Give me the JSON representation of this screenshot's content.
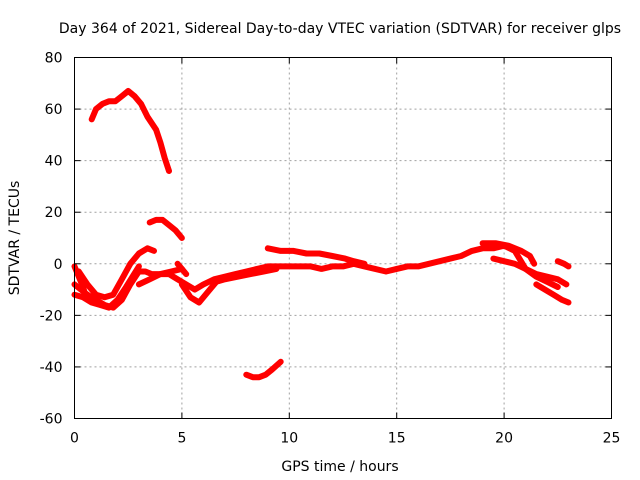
{
  "chart_data": {
    "type": "scatter",
    "title": "Day 364 of 2021, Sidereal Day-to-day VTEC variation (SDTVAR) for receiver glps",
    "xlabel": "GPS time / hours",
    "ylabel": "SDTVAR / TECUs",
    "xlim": [
      0,
      25
    ],
    "ylim": [
      -60,
      80
    ],
    "xticks": [
      0,
      5,
      10,
      15,
      20,
      25
    ],
    "yticks": [
      -60,
      -40,
      -20,
      0,
      20,
      40,
      60,
      80
    ],
    "grid": true,
    "color": "#ff0000",
    "series": [
      {
        "name": "track-1",
        "points": [
          [
            0.8,
            56
          ],
          [
            1.0,
            60
          ],
          [
            1.3,
            62
          ],
          [
            1.6,
            63
          ],
          [
            1.9,
            63
          ],
          [
            2.2,
            65
          ],
          [
            2.5,
            67
          ],
          [
            2.8,
            65
          ],
          [
            3.1,
            62
          ],
          [
            3.4,
            57
          ],
          [
            3.8,
            52
          ],
          [
            4.0,
            47
          ],
          [
            4.2,
            41
          ],
          [
            4.4,
            36
          ]
        ]
      },
      {
        "name": "track-2",
        "points": [
          [
            3.5,
            16
          ],
          [
            3.8,
            17
          ],
          [
            4.1,
            17
          ],
          [
            4.4,
            15
          ],
          [
            4.7,
            13
          ],
          [
            5.0,
            10
          ]
        ]
      },
      {
        "name": "track-3",
        "points": [
          [
            8.0,
            -43
          ],
          [
            8.3,
            -44
          ],
          [
            8.6,
            -44
          ],
          [
            8.9,
            -43
          ],
          [
            9.2,
            -41
          ],
          [
            9.6,
            -38
          ]
        ]
      },
      {
        "name": "track-4",
        "points": [
          [
            0.0,
            -8
          ],
          [
            0.3,
            -10
          ],
          [
            0.6,
            -12
          ],
          [
            1.0,
            -14
          ],
          [
            1.4,
            -16
          ],
          [
            1.8,
            -17
          ],
          [
            2.2,
            -14
          ],
          [
            2.6,
            -8
          ],
          [
            3.0,
            -3
          ],
          [
            3.3,
            -3
          ],
          [
            3.6,
            -4
          ],
          [
            4.0,
            -4
          ],
          [
            4.4,
            -4
          ],
          [
            4.8,
            -6
          ],
          [
            5.2,
            -8
          ],
          [
            5.6,
            -10
          ],
          [
            6.0,
            -8
          ],
          [
            6.5,
            -6
          ],
          [
            7.0,
            -5
          ],
          [
            7.5,
            -4
          ],
          [
            8.0,
            -3
          ],
          [
            8.5,
            -2
          ],
          [
            9.0,
            -1
          ],
          [
            9.5,
            -1
          ],
          [
            10.0,
            -1
          ],
          [
            10.5,
            -1
          ],
          [
            11.0,
            -1
          ],
          [
            11.5,
            -2
          ],
          [
            12.0,
            -1
          ],
          [
            12.5,
            -1
          ],
          [
            13.0,
            0
          ],
          [
            13.5,
            -1
          ],
          [
            14.0,
            -2
          ],
          [
            14.5,
            -3
          ],
          [
            15.0,
            -2
          ],
          [
            15.5,
            -1
          ],
          [
            16.0,
            -1
          ],
          [
            16.5,
            0
          ],
          [
            17.0,
            1
          ],
          [
            17.5,
            2
          ],
          [
            18.0,
            3
          ],
          [
            18.5,
            5
          ],
          [
            19.0,
            6
          ],
          [
            19.5,
            6
          ],
          [
            20.0,
            7
          ],
          [
            20.5,
            5
          ],
          [
            21.0,
            -2
          ],
          [
            21.5,
            -5
          ],
          [
            22.0,
            -7
          ],
          [
            22.5,
            -9
          ]
        ]
      },
      {
        "name": "track-5",
        "points": [
          [
            0.2,
            -3
          ],
          [
            0.6,
            -8
          ],
          [
            1.0,
            -12
          ],
          [
            1.4,
            -13
          ],
          [
            1.8,
            -12
          ],
          [
            2.2,
            -6
          ],
          [
            2.6,
            0
          ],
          [
            3.0,
            4
          ],
          [
            3.4,
            6
          ],
          [
            3.7,
            5
          ]
        ]
      },
      {
        "name": "track-6",
        "points": [
          [
            0.0,
            -12
          ],
          [
            0.4,
            -13
          ],
          [
            0.8,
            -15
          ],
          [
            1.2,
            -16
          ],
          [
            1.6,
            -17
          ],
          [
            2.0,
            -14
          ],
          [
            2.4,
            -9
          ],
          [
            2.7,
            -5
          ],
          [
            3.0,
            -1
          ]
        ]
      },
      {
        "name": "track-7",
        "points": [
          [
            3.0,
            -8
          ],
          [
            3.5,
            -6
          ],
          [
            4.0,
            -4
          ],
          [
            4.5,
            -3
          ],
          [
            5.0,
            -2
          ]
        ]
      },
      {
        "name": "track-8",
        "points": [
          [
            5.0,
            -8
          ],
          [
            5.4,
            -13
          ],
          [
            5.8,
            -15
          ],
          [
            6.2,
            -11
          ],
          [
            6.6,
            -7
          ],
          [
            7.0,
            -6
          ],
          [
            7.6,
            -5
          ],
          [
            8.2,
            -4
          ],
          [
            8.8,
            -3
          ],
          [
            9.4,
            -2
          ]
        ]
      },
      {
        "name": "track-9",
        "points": [
          [
            9.0,
            6
          ],
          [
            9.6,
            5
          ],
          [
            10.2,
            5
          ],
          [
            10.8,
            4
          ],
          [
            11.4,
            4
          ],
          [
            12.0,
            3
          ],
          [
            12.6,
            2
          ],
          [
            13.0,
            1
          ],
          [
            13.5,
            0
          ]
        ]
      },
      {
        "name": "track-10",
        "points": [
          [
            19.5,
            2
          ],
          [
            20.0,
            1
          ],
          [
            20.5,
            0
          ],
          [
            21.0,
            -2
          ],
          [
            21.5,
            -4
          ],
          [
            22.0,
            -5
          ],
          [
            22.5,
            -6
          ],
          [
            22.9,
            -8
          ]
        ]
      },
      {
        "name": "track-11",
        "points": [
          [
            19.0,
            8
          ],
          [
            19.6,
            8
          ],
          [
            20.2,
            7
          ],
          [
            20.8,
            5
          ],
          [
            21.2,
            3
          ],
          [
            21.4,
            0
          ]
        ]
      },
      {
        "name": "track-12",
        "points": [
          [
            21.5,
            -8
          ],
          [
            21.9,
            -10
          ],
          [
            22.3,
            -12
          ],
          [
            22.7,
            -14
          ],
          [
            23.0,
            -15
          ]
        ]
      },
      {
        "name": "track-13",
        "points": [
          [
            22.5,
            1
          ],
          [
            22.8,
            0
          ],
          [
            23.0,
            -1
          ]
        ]
      },
      {
        "name": "track-14",
        "points": [
          [
            0.0,
            -1
          ],
          [
            0.2,
            -5
          ],
          [
            0.4,
            -9
          ],
          [
            0.5,
            -12
          ]
        ]
      },
      {
        "name": "track-15",
        "points": [
          [
            4.8,
            0
          ],
          [
            5.0,
            -2
          ],
          [
            5.2,
            -4
          ]
        ]
      }
    ]
  }
}
